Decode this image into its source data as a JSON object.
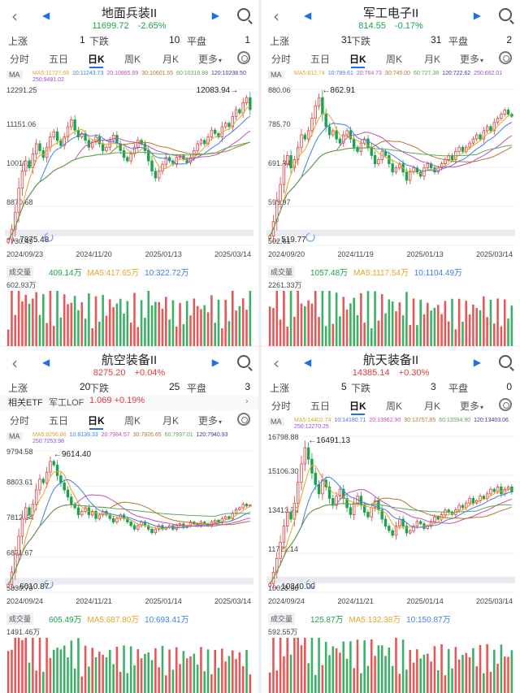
{
  "colors": {
    "up": "#e23b3b",
    "down": "#1aa34a",
    "accent": "#1f6fe5",
    "ma5": "#e4a52a",
    "ma10": "#3e7ee8",
    "ma20": "#c24fb4",
    "ma30": "#b9762a",
    "ma60": "#5aa85a",
    "ma120": "#3a3a9a",
    "ma250": "#9b4fd6"
  },
  "icons": {
    "back": "chevron-left-icon",
    "prev": "triangle-left-icon",
    "next": "triangle-right-icon",
    "search": "search-icon",
    "settings": "gear-icon",
    "replay": "refresh-icon"
  },
  "common": {
    "back_glyph": "‹",
    "prev_glyph": "◀",
    "next_glyph": "▶",
    "rise_label": "上涨",
    "fall_label": "下跌",
    "flat_label": "平盘",
    "tabs": [
      "分时",
      "五日",
      "日K",
      "周K",
      "月K",
      "更多"
    ],
    "active_tab": "日K",
    "more_caret": "▾",
    "ma_tag": "MA",
    "vol_tag": "成交量"
  },
  "panels": [
    {
      "title": "地面兵装II",
      "price": "11699.72",
      "change": "-2.65%",
      "direction": "down",
      "rise": "1",
      "fall": "10",
      "flat": "1",
      "ma": {
        "ma5": "MA5:11727.69",
        "ma10": "10:11243.73",
        "ma20": "20:10865.59",
        "ma30": "30:10601.55",
        "ma60": "60:10318.89",
        "ma120": "120:10238.50",
        "ma250": "250:9491.02"
      },
      "vol": {
        "value": "409.14万",
        "ma5": "MA5:417.65万",
        "ma10": "10:322.72万",
        "max": "602.93万"
      },
      "chart_data": {
        "type": "candlestick",
        "y_ticks": [
          "12291.25",
          "11151.06",
          "10010.87",
          "8870.68",
          "7730.49"
        ],
        "x_ticks": [
          "2024/09/23",
          "2024/11/20",
          "2025/01/13",
          "2025/03/14"
        ],
        "high_label": "12083.94",
        "low_label": "7875.48",
        "ylim": [
          7730.49,
          12291.25
        ],
        "closes": [
          7900,
          8200,
          8700,
          9400,
          9900,
          10200,
          10000,
          10400,
          10700,
          10500,
          10300,
          10600,
          10900,
          11050,
          10800,
          10650,
          10900,
          11200,
          11400,
          11100,
          10900,
          11000,
          10800,
          10600,
          10750,
          10900,
          10700,
          10500,
          10600,
          10800,
          10950,
          10700,
          10500,
          10300,
          10200,
          10400,
          10600,
          10800,
          10700,
          10500,
          10200,
          9900,
          9700,
          9900,
          10100,
          10300,
          10200,
          10100,
          10300,
          10350,
          10250,
          10150,
          10300,
          10500,
          10700,
          10800,
          10700,
          10900,
          11100,
          11000,
          10900,
          11200,
          11300,
          11200,
          11500,
          11700,
          11600,
          11900,
          12050,
          11700
        ]
      }
    },
    {
      "title": "军工电子II",
      "price": "814.55",
      "change": "-0.17%",
      "direction": "down",
      "rise": "31",
      "fall": "31",
      "flat": "2",
      "ma": {
        "ma5": "MA5:812.74",
        "ma10": "10:789.61",
        "ma20": "20:764.73",
        "ma30": "30:745.00",
        "ma60": "60:727.38",
        "ma120": "120:722.62",
        "ma250": "250:662.01"
      },
      "vol": {
        "value": "1057.48万",
        "ma5": "MA5:1117.54万",
        "ma10": "10:1104.49万",
        "max": "2261.33万"
      },
      "chart_data": {
        "type": "candlestick",
        "y_ticks": [
          "880.06",
          "785.70",
          "691.34",
          "596.97",
          "502.61"
        ],
        "x_ticks": [
          "2024/09/20",
          "2024/11/19",
          "2025/01/13",
          "2025/03/14"
        ],
        "high_label": "862.91",
        "low_label": "519.77",
        "ylim": [
          502.61,
          880.06
        ],
        "closes": [
          525,
          560,
          610,
          650,
          700,
          720,
          690,
          710,
          740,
          770,
          760,
          780,
          810,
          840,
          860,
          820,
          790,
          770,
          780,
          760,
          750,
          770,
          780,
          760,
          740,
          730,
          750,
          760,
          740,
          720,
          700,
          710,
          730,
          720,
          700,
          680,
          690,
          700,
          680,
          660,
          680,
          690,
          680,
          670,
          690,
          700,
          690,
          680,
          690,
          700,
          710,
          720,
          710,
          730,
          740,
          730,
          740,
          750,
          760,
          770,
          760,
          780,
          790,
          780,
          800,
          810,
          820,
          830,
          820,
          815
        ]
      }
    },
    {
      "title": "航空装备II",
      "price": "8275.20",
      "change": "+0.04%",
      "direction": "up",
      "rise": "20",
      "fall": "25",
      "flat": "3",
      "etf": {
        "label": "相关ETF",
        "name": "军工LOF",
        "price": "1.069",
        "change": "+0.19%",
        "arrow": "›"
      },
      "ma": {
        "ma5": "MA5:8296.86",
        "ma10": "10:8139.33",
        "ma20": "20:7984.57",
        "ma30": "30:7926.65",
        "ma60": "60:7937.01",
        "ma120": "120:7940.93",
        "ma250": "250:7253.98"
      },
      "vol": {
        "value": "605.49万",
        "ma5": "MA5:687.80万",
        "ma10": "10:693.41万",
        "max": "1491.46万"
      },
      "chart_data": {
        "type": "candlestick",
        "y_ticks": [
          "9794.58",
          "8803.61",
          "7812.64",
          "6821.67",
          "5830.70"
        ],
        "x_ticks": [
          "2024/09/24",
          "2024/11/21",
          "2025/01/14",
          "2025/03/14"
        ],
        "high_label": "9614.40",
        "low_label": "6010.87",
        "ylim": [
          5830.7,
          9794.58
        ],
        "closes": [
          6050,
          6400,
          6900,
          7400,
          7900,
          8200,
          8000,
          8300,
          8700,
          9000,
          8900,
          9200,
          9500,
          9400,
          9100,
          8900,
          8700,
          8500,
          8300,
          8200,
          8000,
          8100,
          8200,
          8000,
          8100,
          7900,
          8000,
          8100,
          8000,
          7900,
          7800,
          7900,
          8000,
          7900,
          7800,
          7700,
          7600,
          7700,
          7800,
          7700,
          7600,
          7500,
          7600,
          7700,
          7600,
          7650,
          7700,
          7600,
          7700,
          7750,
          7650,
          7700,
          7800,
          7750,
          7700,
          7800,
          7750,
          7700,
          7800,
          7850,
          7800,
          7900,
          7950,
          7900,
          8050,
          8150,
          8200,
          8300,
          8250,
          8275
        ]
      }
    },
    {
      "title": "航天装备II",
      "price": "14385.14",
      "change": "+0.30%",
      "direction": "up",
      "rise": "5",
      "fall": "3",
      "flat": "0",
      "ma": {
        "ma5": "MA5:14402.74",
        "ma10": "10:14180.71",
        "ma20": "20:13962.90",
        "ma30": "30:13757.85",
        "ma60": "60:13594.90",
        "ma120": "120:13403.06",
        "ma250": "250:12270.25"
      },
      "vol": {
        "value": "125.87万",
        "ma5": "MA5:132.38万",
        "ma10": "10:150.87万",
        "max": "592.55万"
      },
      "chart_data": {
        "type": "candlestick",
        "y_ticks": [
          "16798.88",
          "15106.30",
          "13413.72",
          "11721.14",
          "10028.56"
        ],
        "x_ticks": [
          "2024/09/24",
          "2024/11/21",
          "2025/01/14",
          "2025/03/14"
        ],
        "high_label": "16491.13",
        "low_label": "10340.00",
        "ylim": [
          10028.56,
          16798.88
        ],
        "closes": [
          10400,
          10900,
          11500,
          12200,
          12900,
          13500,
          13200,
          13900,
          14800,
          15600,
          16300,
          15800,
          15200,
          14700,
          14300,
          14900,
          14600,
          14100,
          13800,
          14200,
          14500,
          14100,
          13700,
          13400,
          13900,
          14200,
          13800,
          13500,
          13300,
          13700,
          14000,
          13600,
          13200,
          12900,
          12700,
          12500,
          12900,
          13200,
          12900,
          12600,
          12700,
          12900,
          13100,
          13000,
          12800,
          12900,
          13100,
          13300,
          13200,
          13400,
          13600,
          13500,
          13400,
          13600,
          13800,
          13700,
          13900,
          14100,
          13900,
          14000,
          14200,
          14100,
          14300,
          14500,
          14400,
          14600,
          14300,
          14500,
          14600,
          14385
        ]
      }
    }
  ]
}
